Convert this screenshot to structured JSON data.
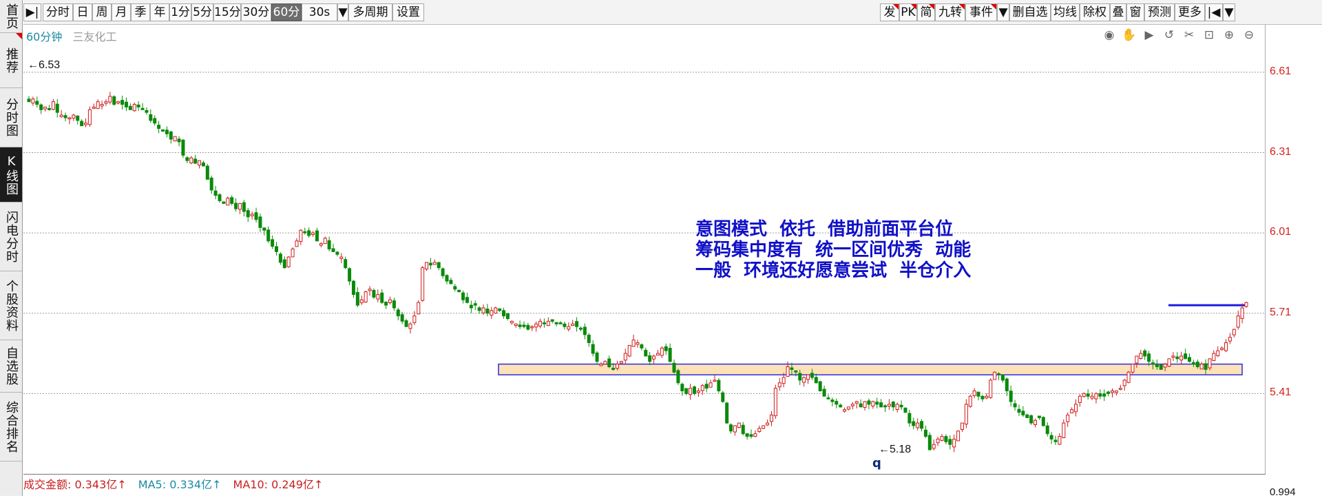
{
  "sidebar": {
    "items": [
      {
        "label": "首页",
        "flag": false,
        "active": false
      },
      {
        "label": "推荐",
        "flag": true,
        "active": false
      },
      {
        "label": "分时图",
        "flag": false,
        "active": false
      },
      {
        "label": "K线图",
        "flag": false,
        "active": true
      },
      {
        "label": "闪电分时",
        "flag": false,
        "active": false
      },
      {
        "label": "个股资料",
        "flag": false,
        "active": false
      },
      {
        "label": "自选股",
        "flag": false,
        "active": false
      },
      {
        "label": "综合排名",
        "flag": false,
        "active": false
      }
    ]
  },
  "toolbar": {
    "left_icon": "▶|",
    "periods": [
      "分时",
      "日",
      "周",
      "月",
      "季",
      "年",
      "1分",
      "5分",
      "15分",
      "30分",
      "60分",
      "30s"
    ],
    "active_period": "60分",
    "dropdown_icon": "▼",
    "multi_period": "多周期",
    "settings": "设置",
    "right_buttons": [
      "发",
      "PK",
      "简",
      "九转",
      "事件",
      "▼",
      "删自选",
      "均线",
      "除权",
      "叠",
      "窗",
      "预测",
      "更多"
    ],
    "collapse_icon": "|◀",
    "menu_icon": "▼"
  },
  "stock": {
    "period_label": "60分钟",
    "name": "三友化工"
  },
  "chart_tools": [
    "eye-icon",
    "hand-icon",
    "play-icon",
    "undo-icon",
    "scissors-icon",
    "lock-icon",
    "zoom-in-icon",
    "zoom-out-icon"
  ],
  "chart_data": {
    "type": "candlestick",
    "y_ticks": [
      "6.61",
      "6.31",
      "6.01",
      "5.71",
      "5.41"
    ],
    "ylim": [
      5.11,
      6.71
    ],
    "up_color": "#d01818",
    "down_color": "#0a8a0a",
    "high_label": "6.53",
    "low_label": "5.18",
    "support_zone": {
      "low": 5.48,
      "high": 5.52
    },
    "resistance_level": 5.74,
    "marker": "q",
    "closes": [
      6.5,
      6.51,
      6.49,
      6.47,
      6.48,
      6.47,
      6.5,
      6.46,
      6.45,
      6.44,
      6.44,
      6.45,
      6.43,
      6.41,
      6.42,
      6.47,
      6.48,
      6.5,
      6.49,
      6.5,
      6.52,
      6.49,
      6.5,
      6.49,
      6.48,
      6.47,
      6.49,
      6.48,
      6.47,
      6.46,
      6.43,
      6.42,
      6.4,
      6.39,
      6.38,
      6.36,
      6.37,
      6.35,
      6.3,
      6.28,
      6.29,
      6.27,
      6.28,
      6.26,
      6.21,
      6.17,
      6.15,
      6.13,
      6.12,
      6.14,
      6.12,
      6.1,
      6.12,
      6.09,
      6.07,
      6.08,
      6.06,
      6.03,
      6.02,
      5.98,
      5.96,
      5.94,
      5.9,
      5.88,
      5.92,
      5.95,
      5.98,
      6.02,
      6.01,
      6.0,
      6.01,
      5.98,
      5.97,
      5.99,
      5.95,
      5.94,
      5.93,
      5.92,
      5.88,
      5.83,
      5.78,
      5.74,
      5.76,
      5.79,
      5.8,
      5.77,
      5.78,
      5.75,
      5.74,
      5.76,
      5.73,
      5.7,
      5.68,
      5.66,
      5.67,
      5.7,
      5.75,
      5.88,
      5.9,
      5.89,
      5.9,
      5.88,
      5.85,
      5.83,
      5.82,
      5.8,
      5.79,
      5.76,
      5.75,
      5.73,
      5.74,
      5.72,
      5.73,
      5.71,
      5.72,
      5.73,
      5.72,
      5.7,
      5.69,
      5.68,
      5.67,
      5.66,
      5.66,
      5.65,
      5.66,
      5.67,
      5.68,
      5.67,
      5.68,
      5.68,
      5.67,
      5.67,
      5.66,
      5.66,
      5.67,
      5.66,
      5.65,
      5.63,
      5.6,
      5.56,
      5.53,
      5.52,
      5.53,
      5.51,
      5.5,
      5.52,
      5.53,
      5.56,
      5.59,
      5.61,
      5.6,
      5.58,
      5.55,
      5.53,
      5.55,
      5.56,
      5.58,
      5.57,
      5.53,
      5.49,
      5.45,
      5.42,
      5.41,
      5.43,
      5.41,
      5.42,
      5.44,
      5.43,
      5.45,
      5.46,
      5.42,
      5.38,
      5.3,
      5.27,
      5.29,
      5.3,
      5.26,
      5.25,
      5.25,
      5.26,
      5.28,
      5.29,
      5.3,
      5.33,
      5.43,
      5.45,
      5.47,
      5.51,
      5.5,
      5.49,
      5.46,
      5.47,
      5.48,
      5.47,
      5.45,
      5.42,
      5.4,
      5.39,
      5.38,
      5.37,
      5.36,
      5.35,
      5.36,
      5.37,
      5.38,
      5.36,
      5.38,
      5.37,
      5.38,
      5.37,
      5.36,
      5.36,
      5.37,
      5.36,
      5.37,
      5.36,
      5.34,
      5.3,
      5.29,
      5.3,
      5.28,
      5.25,
      5.2,
      5.22,
      5.24,
      5.25,
      5.23,
      5.22,
      5.24,
      5.27,
      5.3,
      5.37,
      5.4,
      5.42,
      5.4,
      5.39,
      5.4,
      5.46,
      5.49,
      5.48,
      5.46,
      5.42,
      5.38,
      5.36,
      5.34,
      5.33,
      5.32,
      5.3,
      5.31,
      5.32,
      5.29,
      5.26,
      5.24,
      5.23,
      5.25,
      5.3,
      5.33,
      5.35,
      5.37,
      5.4,
      5.41,
      5.4,
      5.4,
      5.41,
      5.4,
      5.4,
      5.41,
      5.42,
      5.42,
      5.43,
      5.46,
      5.49,
      5.52,
      5.55,
      5.56,
      5.55,
      5.53,
      5.52,
      5.51,
      5.5,
      5.52,
      5.54,
      5.55,
      5.54,
      5.55,
      5.54,
      5.53,
      5.52,
      5.51,
      5.52,
      5.5,
      5.54,
      5.56,
      5.57,
      5.58,
      5.6,
      5.62,
      5.65,
      5.7,
      5.73,
      5.75
    ]
  },
  "price_labels": [
    "6.61",
    "6.31",
    "6.01",
    "5.71",
    "5.41"
  ],
  "annotation": {
    "line1": "意图模式  依托  借助前面平台位",
    "line2": "筹码集中度有  统一区间优秀  动能",
    "line3": "一般  环境还好愿意尝试  半仓介入"
  },
  "volume": {
    "turnover": "成交金额: 0.343亿↑",
    "ma5": "MA5: 0.334亿↑",
    "ma10": "MA10: 0.249亿↑",
    "axis_value": "0.994"
  }
}
